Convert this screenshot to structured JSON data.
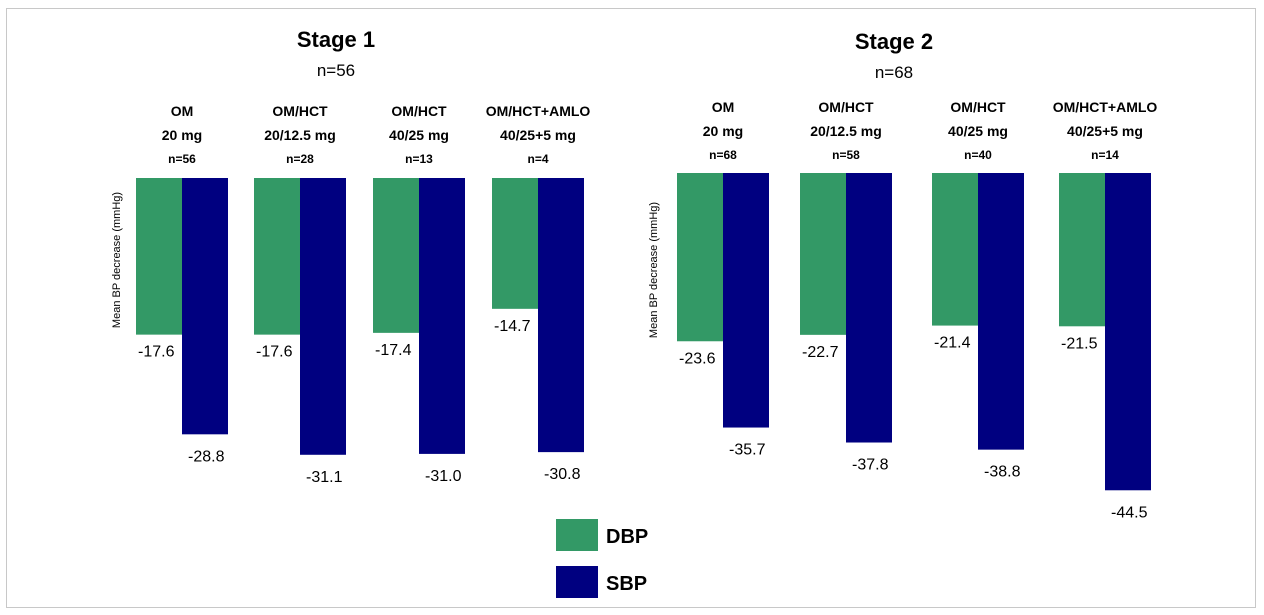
{
  "colors": {
    "dbp": "#339966",
    "sbp": "#000080"
  },
  "legend": [
    {
      "key": "dbp",
      "label": "DBP"
    },
    {
      "key": "sbp",
      "label": "SBP"
    }
  ],
  "chart_data": [
    {
      "type": "bar",
      "title": "Stage 1",
      "subtitle": "n=56",
      "ylabel": "Mean BP decrease (mmHg)",
      "categories": [
        {
          "line1": "OM",
          "line2": "20 mg",
          "line3": "n=56"
        },
        {
          "line1": "OM/HCT",
          "line2": "20/12.5 mg",
          "line3": "n=28"
        },
        {
          "line1": "OM/HCT",
          "line2": "40/25 mg",
          "line3": "n=13"
        },
        {
          "line1": "OM/HCT+AMLO",
          "line2": "40/25+5 mg",
          "line3": "n=4"
        }
      ],
      "series": [
        {
          "name": "DBP",
          "values": [
            -17.6,
            -17.6,
            -17.4,
            -14.7
          ],
          "labels": [
            "-17.6",
            "-17.6",
            "-17.4",
            "-14.7"
          ]
        },
        {
          "name": "SBP",
          "values": [
            -28.8,
            -31.1,
            -31.0,
            -30.8
          ],
          "labels": [
            "-28.8",
            "-31.1",
            "-31.0",
            "-30.8"
          ]
        }
      ]
    },
    {
      "type": "bar",
      "title": "Stage 2",
      "subtitle": "n=68",
      "ylabel": "Mean BP decrease (mmHg)",
      "categories": [
        {
          "line1": "OM",
          "line2": "20 mg",
          "line3": "n=68"
        },
        {
          "line1": "OM/HCT",
          "line2": "20/12.5 mg",
          "line3": "n=58"
        },
        {
          "line1": "OM/HCT",
          "line2": "40/25 mg",
          "line3": "n=40"
        },
        {
          "line1": "OM/HCT+AMLO",
          "line2": "40/25+5 mg",
          "line3": "n=14"
        }
      ],
      "series": [
        {
          "name": "DBP",
          "values": [
            -23.6,
            -22.7,
            -21.4,
            -21.5
          ],
          "labels": [
            "-23.6",
            "-22.7",
            "-21.4",
            "-21.5"
          ]
        },
        {
          "name": "SBP",
          "values": [
            -35.7,
            -37.8,
            -38.8,
            -44.5
          ],
          "labels": [
            "-35.7",
            "-37.8",
            "-38.8",
            "-44.5"
          ]
        }
      ]
    }
  ]
}
